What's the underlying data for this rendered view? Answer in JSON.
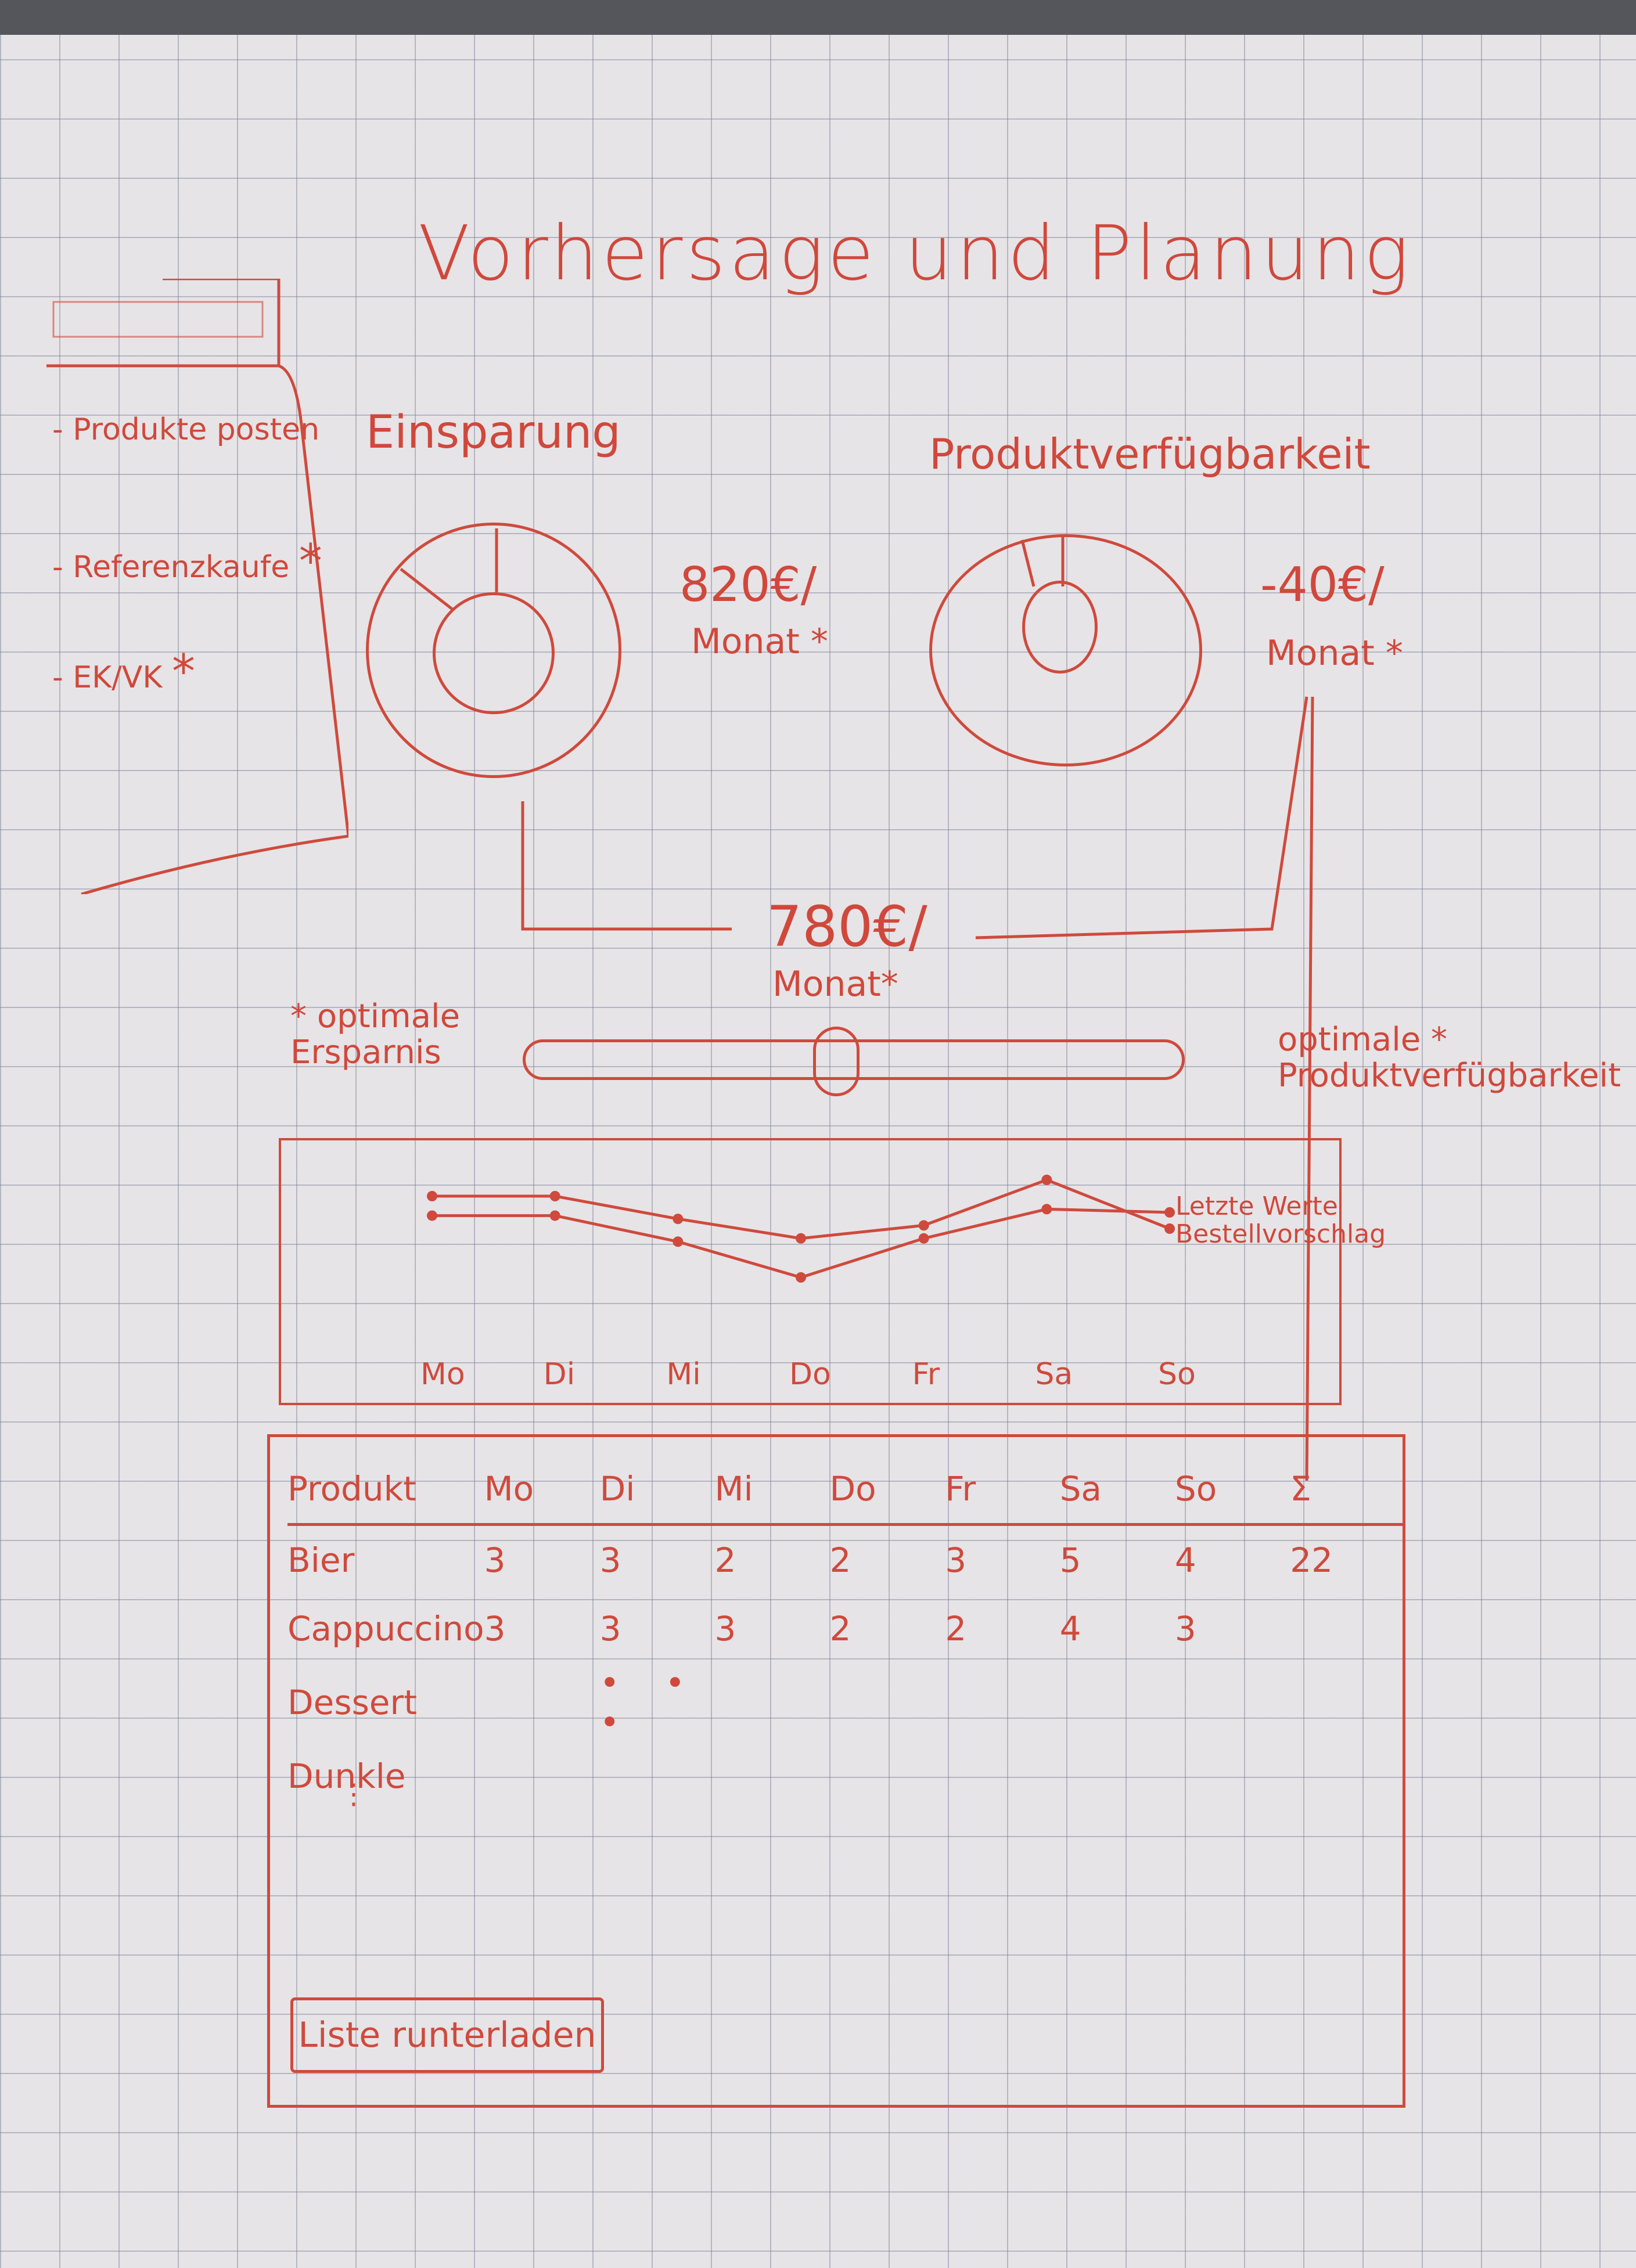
{
  "page": {
    "title": "Vorhersage und Planung"
  },
  "sidebar": {
    "items": [
      {
        "label": "- Produkte posten",
        "starred": false
      },
      {
        "label": "- Referenzkaufe",
        "starred": true
      },
      {
        "label": "- EK/VK",
        "starred": true
      }
    ]
  },
  "gauges": {
    "savings": {
      "title": "Einsparung",
      "value": "820€/",
      "unit": "Monat"
    },
    "product_sales": {
      "title": "Produktverfügbarkeit",
      "value": "-40€/",
      "unit": "Monat"
    },
    "combined": {
      "value": "780€/",
      "unit": "Monat"
    }
  },
  "slider": {
    "left_label_1": "optimale",
    "left_label_2": "Ersparnis",
    "right_label_1": "optimale",
    "right_label_2": "Produktverfügbarkeit",
    "position": 0.5
  },
  "chart_data": {
    "type": "line",
    "categories": [
      "Mo",
      "Di",
      "Mi",
      "Do",
      "Fr",
      "Sa",
      "So"
    ],
    "legend": [
      "Letzte Werte",
      "Bestellvorschlag"
    ],
    "legend_position": "right",
    "series": [
      {
        "values": [
          4,
          4,
          3.3,
          2.7,
          3.1,
          4.5,
          3.0
        ]
      },
      {
        "values": [
          3.4,
          3.4,
          2.6,
          1.5,
          2.7,
          3.6,
          3.5
        ]
      }
    ],
    "ylim": [
      0,
      5
    ]
  },
  "table": {
    "headers": [
      "Produkt",
      "Mo",
      "Di",
      "Mi",
      "Do",
      "Fr",
      "Sa",
      "So",
      "Σ"
    ],
    "rows": [
      [
        "Bier",
        "3",
        "3",
        "2",
        "2",
        "3",
        "5",
        "4",
        "22"
      ],
      [
        "Cappuccino",
        "3",
        "3",
        "3",
        "2",
        "2",
        "4",
        "3",
        ""
      ],
      [
        "Dessert",
        "",
        "• • •",
        "",
        "",
        "",
        "",
        "",
        ""
      ],
      [
        "Dunkle",
        "",
        "",
        "",
        "",
        "",
        "",
        "",
        ""
      ]
    ],
    "more_rows": "⋮"
  },
  "actions": {
    "export_label": "Liste runterladen"
  },
  "asterisk": "*"
}
